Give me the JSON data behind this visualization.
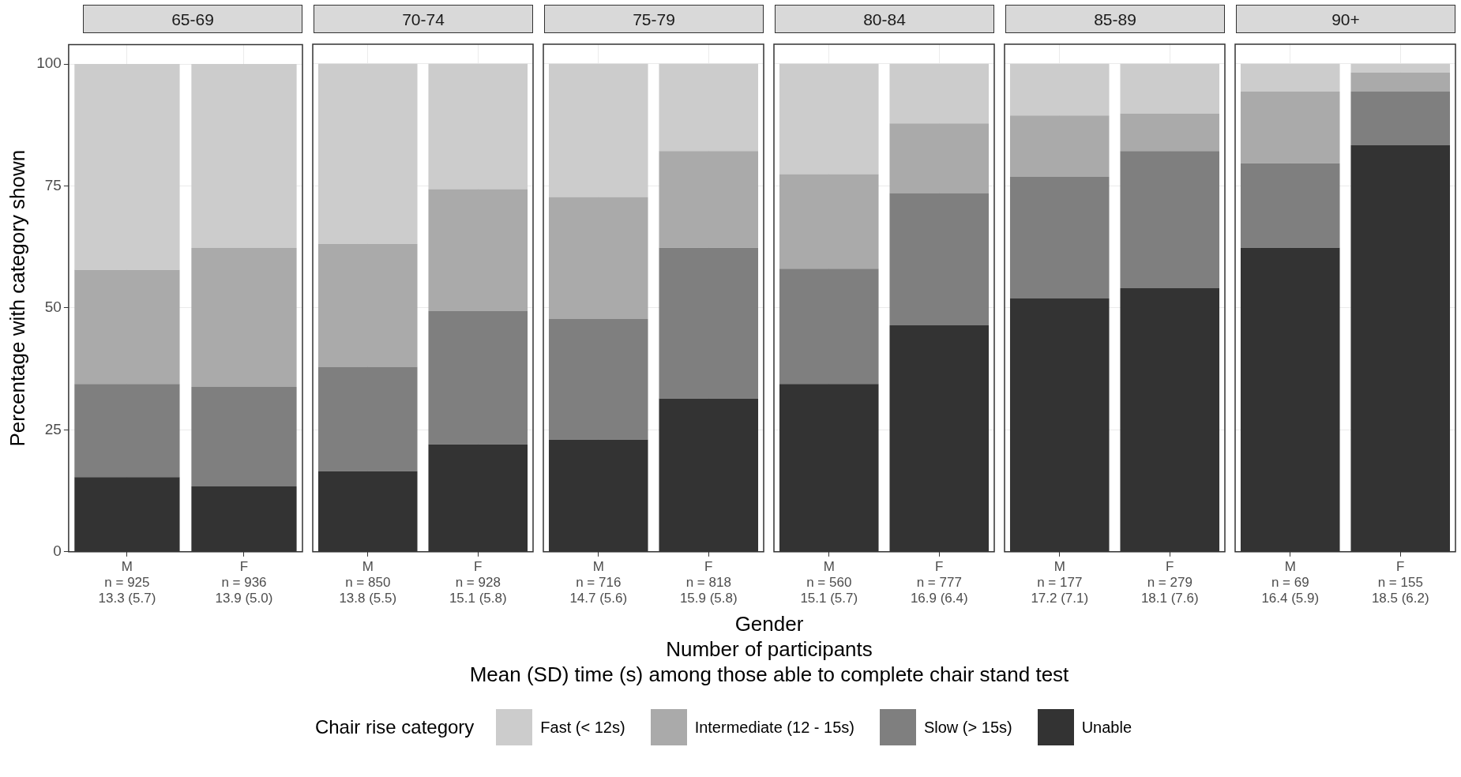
{
  "chart_data": [
    {
      "type": "bar",
      "title": "65-69",
      "ylabel": "Percentage with category shown",
      "legend_title": "Chair rise category",
      "legend": "bottom",
      "stacked": true,
      "grid": true,
      "ylim": [
        0,
        104
      ],
      "yticks": [
        0,
        25,
        50,
        75,
        100
      ],
      "categories": [
        "M\nn = 925\n13.3 (5.7)",
        "F\nn = 936\n13.9 (5.0)"
      ],
      "series": [
        {
          "name": "Unable",
          "color": "#333333",
          "values": [
            15.3,
            13.4
          ]
        },
        {
          "name": "Slow (> 15s)",
          "color": "#7f7f7f",
          "values": [
            19.1,
            20.4
          ]
        },
        {
          "name": "Intermediate (12 - 15s)",
          "color": "#aaaaaa",
          "values": [
            23.4,
            28.5
          ]
        },
        {
          "name": "Fast (< 12s)",
          "color": "#cccccc",
          "values": [
            42.2,
            37.7
          ]
        }
      ]
    },
    {
      "type": "bar",
      "title": "70-74",
      "stacked": true,
      "grid": true,
      "tick_labels": "x",
      "ylim": [
        0,
        104
      ],
      "yticks": [
        0,
        25,
        50,
        75,
        100
      ],
      "categories": [
        "M\nn = 850\n13.8 (5.5)",
        "F\nn = 928\n15.1 (5.8)"
      ],
      "series": [
        {
          "color": "#333333",
          "values": [
            16.5,
            22.0
          ]
        },
        {
          "color": "#7f7f7f",
          "values": [
            21.4,
            27.3
          ]
        },
        {
          "color": "#aaaaaa",
          "values": [
            25.2,
            25.0
          ]
        },
        {
          "color": "#cccccc",
          "values": [
            36.9,
            25.7
          ]
        }
      ]
    },
    {
      "type": "bar",
      "title": "75-79",
      "stacked": true,
      "grid": true,
      "tick_labels": "x",
      "ylim": [
        0,
        104
      ],
      "yticks": [
        0,
        25,
        50,
        75,
        100
      ],
      "categories": [
        "M\nn = 716\n14.7 (5.6)",
        "F\nn = 818\n15.9 (5.8)"
      ],
      "series": [
        {
          "color": "#333333",
          "values": [
            23.0,
            31.4
          ]
        },
        {
          "color": "#7f7f7f",
          "values": [
            24.7,
            30.9
          ]
        },
        {
          "color": "#aaaaaa",
          "values": [
            25.0,
            19.8
          ]
        },
        {
          "color": "#cccccc",
          "values": [
            27.3,
            17.9
          ]
        }
      ]
    },
    {
      "type": "bar",
      "title": "80-84",
      "xlabel": "Gender\nNumber of participants\nMean (SD) time (s) among those able to complete chair stand test",
      "stacked": true,
      "grid": true,
      "tick_labels": "x",
      "ylim": [
        0,
        104
      ],
      "yticks": [
        0,
        25,
        50,
        75,
        100
      ],
      "categories": [
        "M\nn = 560\n15.1 (5.7)",
        "F\nn = 777\n16.9 (6.4)"
      ],
      "series": [
        {
          "color": "#333333",
          "values": [
            34.4,
            46.4
          ]
        },
        {
          "color": "#7f7f7f",
          "values": [
            23.6,
            27.1
          ]
        },
        {
          "color": "#aaaaaa",
          "values": [
            19.4,
            14.3
          ]
        },
        {
          "color": "#cccccc",
          "values": [
            22.6,
            12.2
          ]
        }
      ]
    },
    {
      "type": "bar",
      "title": "85-89",
      "stacked": true,
      "grid": true,
      "tick_labels": "x",
      "ylim": [
        0,
        104
      ],
      "yticks": [
        0,
        25,
        50,
        75,
        100
      ],
      "categories": [
        "M\nn = 177\n17.2 (7.1)",
        "F\nn = 279\n18.1 (7.6)"
      ],
      "series": [
        {
          "color": "#333333",
          "values": [
            51.9,
            54.0
          ]
        },
        {
          "color": "#7f7f7f",
          "values": [
            24.9,
            28.1
          ]
        },
        {
          "color": "#aaaaaa",
          "values": [
            12.6,
            7.7
          ]
        },
        {
          "color": "#cccccc",
          "values": [
            10.6,
            10.2
          ]
        }
      ]
    },
    {
      "type": "bar",
      "title": "90+",
      "stacked": true,
      "grid": true,
      "tick_labels": "x",
      "ylim": [
        0,
        104
      ],
      "yticks": [
        0,
        25,
        50,
        75,
        100
      ],
      "categories": [
        "M\nn = 69\n16.4 (5.9)",
        "F\nn = 155\n18.5 (6.2)"
      ],
      "series": [
        {
          "color": "#333333",
          "values": [
            62.3,
            83.3
          ]
        },
        {
          "color": "#7f7f7f",
          "values": [
            17.3,
            11.0
          ]
        },
        {
          "color": "#aaaaaa",
          "values": [
            14.7,
            3.9
          ]
        },
        {
          "color": "#cccccc",
          "values": [
            5.7,
            1.8
          ]
        }
      ]
    }
  ]
}
